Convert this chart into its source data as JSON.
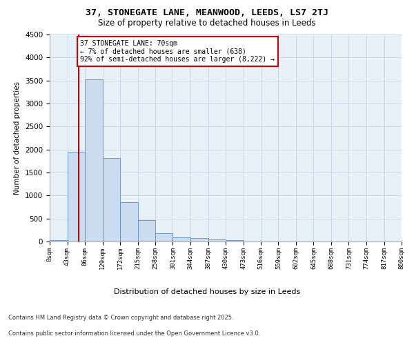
{
  "title_line1": "37, STONEGATE LANE, MEANWOOD, LEEDS, LS7 2TJ",
  "title_line2": "Size of property relative to detached houses in Leeds",
  "xlabel": "Distribution of detached houses by size in Leeds",
  "ylabel": "Number of detached properties",
  "annotation_title": "37 STONEGATE LANE: 70sqm",
  "annotation_line2": "← 7% of detached houses are smaller (638)",
  "annotation_line3": "92% of semi-detached houses are larger (8,222) →",
  "property_size_sqm": 70,
  "footer_line1": "Contains HM Land Registry data © Crown copyright and database right 2025.",
  "footer_line2": "Contains public sector information licensed under the Open Government Licence v3.0.",
  "bar_color": "#ccdcf0",
  "bar_edge_color": "#5f8fc4",
  "vline_color": "#cc0000",
  "annotation_box_color": "#ffffff",
  "annotation_box_edge_color": "#cc0000",
  "grid_color": "#c8d8e8",
  "background_color": "#e8f0f8",
  "bin_edges": [
    0,
    43,
    86,
    129,
    172,
    215,
    258,
    301,
    344,
    387,
    430,
    473,
    516,
    559,
    602,
    645,
    688,
    731,
    774,
    817,
    860
  ],
  "bin_labels": [
    "0sqm",
    "43sqm",
    "86sqm",
    "129sqm",
    "172sqm",
    "215sqm",
    "258sqm",
    "301sqm",
    "344sqm",
    "387sqm",
    "430sqm",
    "473sqm",
    "516sqm",
    "559sqm",
    "602sqm",
    "645sqm",
    "688sqm",
    "731sqm",
    "774sqm",
    "817sqm",
    "860sqm"
  ],
  "bar_heights": [
    30,
    1950,
    3520,
    1820,
    860,
    460,
    185,
    95,
    80,
    45,
    30,
    5,
    0,
    0,
    0,
    0,
    0,
    0,
    0,
    0
  ],
  "ylim": [
    0,
    4500
  ],
  "yticks": [
    0,
    500,
    1000,
    1500,
    2000,
    2500,
    3000,
    3500,
    4000,
    4500
  ]
}
